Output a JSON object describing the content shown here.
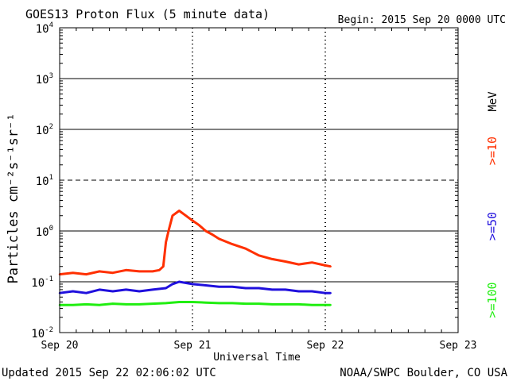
{
  "chart_data": {
    "type": "line",
    "title": "GOES13 Proton Flux (5 minute data)",
    "begin": "Begin: 2015 Sep 20 0000 UTC",
    "ylabel": "Particles cm⁻²s⁻¹sr⁻¹",
    "xlabel": "Universal Time",
    "y_scale": "log",
    "ylim": [
      0.01,
      10000
    ],
    "y_ticks": [
      {
        "base": "10",
        "exp": "4",
        "value": 10000
      },
      {
        "base": "10",
        "exp": "3",
        "value": 1000
      },
      {
        "base": "10",
        "exp": "2",
        "value": 100
      },
      {
        "base": "10",
        "exp": "1",
        "value": 10
      },
      {
        "base": "10",
        "exp": "0",
        "value": 1
      },
      {
        "base": "10",
        "exp": "-1",
        "value": 0.1
      },
      {
        "base": "10",
        "exp": "-2",
        "value": 0.01
      }
    ],
    "xlim": [
      0,
      3
    ],
    "x_ticks": [
      {
        "label": "Sep 20",
        "value": 0
      },
      {
        "label": "Sep 21",
        "value": 1
      },
      {
        "label": "Sep 22",
        "value": 2
      },
      {
        "label": "Sep 23",
        "value": 3
      }
    ],
    "units_label": "MeV",
    "series": [
      {
        "name": ">=10",
        "color": "#ff3000",
        "x": [
          0,
          0.1,
          0.2,
          0.3,
          0.4,
          0.5,
          0.6,
          0.7,
          0.75,
          0.78,
          0.8,
          0.82,
          0.85,
          0.9,
          0.95,
          1.0,
          1.05,
          1.1,
          1.15,
          1.2,
          1.3,
          1.4,
          1.5,
          1.6,
          1.7,
          1.8,
          1.9,
          2.0,
          2.04
        ],
        "values": [
          0.14,
          0.15,
          0.14,
          0.16,
          0.15,
          0.17,
          0.16,
          0.16,
          0.17,
          0.2,
          0.6,
          1.0,
          2.0,
          2.5,
          2.0,
          1.6,
          1.3,
          1.0,
          0.85,
          0.7,
          0.55,
          0.45,
          0.33,
          0.28,
          0.25,
          0.22,
          0.24,
          0.21,
          0.2
        ]
      },
      {
        "name": ">=50",
        "color": "#2010dd",
        "x": [
          0,
          0.1,
          0.2,
          0.3,
          0.4,
          0.5,
          0.6,
          0.7,
          0.8,
          0.85,
          0.9,
          1.0,
          1.1,
          1.2,
          1.3,
          1.4,
          1.5,
          1.6,
          1.7,
          1.8,
          1.9,
          2.0,
          2.04
        ],
        "values": [
          0.06,
          0.065,
          0.06,
          0.07,
          0.065,
          0.07,
          0.065,
          0.07,
          0.075,
          0.09,
          0.1,
          0.09,
          0.085,
          0.08,
          0.08,
          0.075,
          0.075,
          0.07,
          0.07,
          0.065,
          0.065,
          0.06,
          0.06
        ]
      },
      {
        "name": ">=100",
        "color": "#20ee10",
        "x": [
          0,
          0.1,
          0.2,
          0.3,
          0.4,
          0.5,
          0.6,
          0.7,
          0.8,
          0.9,
          1.0,
          1.1,
          1.2,
          1.3,
          1.4,
          1.5,
          1.6,
          1.7,
          1.8,
          1.9,
          2.0,
          2.04
        ],
        "values": [
          0.035,
          0.035,
          0.036,
          0.035,
          0.037,
          0.036,
          0.036,
          0.037,
          0.038,
          0.04,
          0.04,
          0.039,
          0.038,
          0.038,
          0.037,
          0.037,
          0.036,
          0.036,
          0.036,
          0.035,
          0.035,
          0.035
        ]
      }
    ]
  },
  "footer": {
    "updated": "Updated 2015 Sep 22 02:06:02 UTC",
    "credit": "NOAA/SWPC Boulder, CO USA"
  }
}
